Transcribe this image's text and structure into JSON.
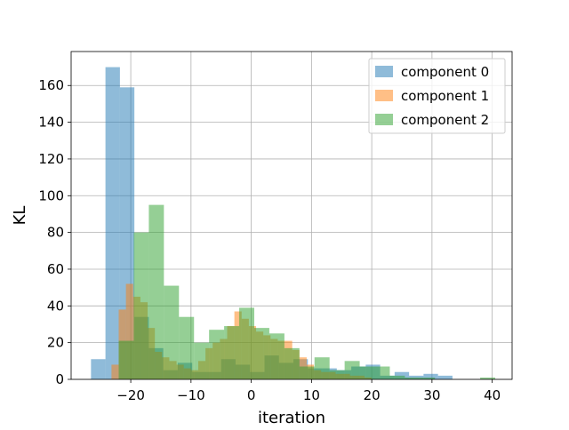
{
  "chart_data": {
    "type": "bar",
    "subtype": "overlapping-histogram",
    "title": "",
    "xlabel": "iteration",
    "ylabel": "KL",
    "xlim": [
      -29.9,
      43.3
    ],
    "ylim": [
      0,
      178.5
    ],
    "xticks": [
      -20,
      -10,
      0,
      10,
      20,
      30,
      40
    ],
    "yticks": [
      0,
      20,
      40,
      60,
      80,
      100,
      120,
      140,
      160
    ],
    "grid": true,
    "legend_placement": "top-right",
    "bar_opacity": 0.5,
    "series": [
      {
        "name": "component 0",
        "color": "#1f77b4",
        "bins": [
          {
            "x0": -26.6,
            "x1": -24.2,
            "count": 11
          },
          {
            "x0": -24.2,
            "x1": -21.8,
            "count": 170
          },
          {
            "x0": -21.8,
            "x1": -19.4,
            "count": 159
          },
          {
            "x0": -19.4,
            "x1": -17.0,
            "count": 34
          },
          {
            "x0": -17.0,
            "x1": -14.6,
            "count": 17
          },
          {
            "x0": -14.6,
            "x1": -12.2,
            "count": 5
          },
          {
            "x0": -12.2,
            "x1": -9.8,
            "count": 9
          },
          {
            "x0": -9.8,
            "x1": -7.4,
            "count": 4
          },
          {
            "x0": -7.4,
            "x1": -5.0,
            "count": 4
          },
          {
            "x0": -5.0,
            "x1": -2.6,
            "count": 11
          },
          {
            "x0": -2.6,
            "x1": -0.2,
            "count": 8
          },
          {
            "x0": -0.2,
            "x1": 2.2,
            "count": 4
          },
          {
            "x0": 2.2,
            "x1": 4.6,
            "count": 13
          },
          {
            "x0": 4.6,
            "x1": 7.0,
            "count": 9
          },
          {
            "x0": 7.0,
            "x1": 9.4,
            "count": 11
          },
          {
            "x0": 9.4,
            "x1": 11.8,
            "count": 6
          },
          {
            "x0": 11.8,
            "x1": 14.2,
            "count": 6
          },
          {
            "x0": 14.2,
            "x1": 16.6,
            "count": 5
          },
          {
            "x0": 16.6,
            "x1": 19.0,
            "count": 7
          },
          {
            "x0": 19.0,
            "x1": 21.4,
            "count": 8
          },
          {
            "x0": 21.4,
            "x1": 23.8,
            "count": 2
          },
          {
            "x0": 23.8,
            "x1": 26.2,
            "count": 4
          },
          {
            "x0": 26.2,
            "x1": 28.6,
            "count": 2
          },
          {
            "x0": 28.6,
            "x1": 31.0,
            "count": 3
          },
          {
            "x0": 31.0,
            "x1": 33.4,
            "count": 2
          }
        ]
      },
      {
        "name": "component 1",
        "color": "#ff7f0e",
        "bins": [
          {
            "x0": -23.2,
            "x1": -22.0,
            "count": 8
          },
          {
            "x0": -22.0,
            "x1": -20.8,
            "count": 38
          },
          {
            "x0": -20.8,
            "x1": -19.6,
            "count": 52
          },
          {
            "x0": -19.6,
            "x1": -18.4,
            "count": 45
          },
          {
            "x0": -18.4,
            "x1": -17.2,
            "count": 42
          },
          {
            "x0": -17.2,
            "x1": -16.0,
            "count": 28
          },
          {
            "x0": -16.0,
            "x1": -14.8,
            "count": 15
          },
          {
            "x0": -14.8,
            "x1": -13.6,
            "count": 12
          },
          {
            "x0": -13.6,
            "x1": -12.4,
            "count": 10
          },
          {
            "x0": -12.4,
            "x1": -11.2,
            "count": 8
          },
          {
            "x0": -11.2,
            "x1": -10.0,
            "count": 6
          },
          {
            "x0": -10.0,
            "x1": -8.8,
            "count": 5
          },
          {
            "x0": -8.8,
            "x1": -7.6,
            "count": 10
          },
          {
            "x0": -7.6,
            "x1": -6.4,
            "count": 17
          },
          {
            "x0": -6.4,
            "x1": -5.2,
            "count": 20
          },
          {
            "x0": -5.2,
            "x1": -4.0,
            "count": 22
          },
          {
            "x0": -4.0,
            "x1": -2.8,
            "count": 29
          },
          {
            "x0": -2.8,
            "x1": -1.6,
            "count": 37
          },
          {
            "x0": -1.6,
            "x1": -0.4,
            "count": 33
          },
          {
            "x0": -0.4,
            "x1": 0.8,
            "count": 29
          },
          {
            "x0": 0.8,
            "x1": 2.0,
            "count": 26
          },
          {
            "x0": 2.0,
            "x1": 3.2,
            "count": 24
          },
          {
            "x0": 3.2,
            "x1": 4.4,
            "count": 22
          },
          {
            "x0": 4.4,
            "x1": 5.6,
            "count": 21
          },
          {
            "x0": 5.6,
            "x1": 6.8,
            "count": 21
          },
          {
            "x0": 6.8,
            "x1": 8.0,
            "count": 16
          },
          {
            "x0": 8.0,
            "x1": 9.2,
            "count": 12
          },
          {
            "x0": 9.2,
            "x1": 10.4,
            "count": 8
          },
          {
            "x0": 10.4,
            "x1": 11.6,
            "count": 5
          },
          {
            "x0": 11.6,
            "x1": 12.8,
            "count": 4
          },
          {
            "x0": 12.8,
            "x1": 14.0,
            "count": 4
          },
          {
            "x0": 14.0,
            "x1": 15.2,
            "count": 3
          },
          {
            "x0": 15.2,
            "x1": 16.4,
            "count": 3
          },
          {
            "x0": 16.4,
            "x1": 17.6,
            "count": 2
          },
          {
            "x0": 17.6,
            "x1": 18.8,
            "count": 2
          },
          {
            "x0": 18.8,
            "x1": 20.0,
            "count": 1
          }
        ]
      },
      {
        "name": "component 2",
        "color": "#2ca02c",
        "bins": [
          {
            "x0": -22.0,
            "x1": -19.5,
            "count": 21
          },
          {
            "x0": -19.5,
            "x1": -17.0,
            "count": 80
          },
          {
            "x0": -17.0,
            "x1": -14.5,
            "count": 95
          },
          {
            "x0": -14.5,
            "x1": -12.0,
            "count": 51
          },
          {
            "x0": -12.0,
            "x1": -9.5,
            "count": 34
          },
          {
            "x0": -9.5,
            "x1": -7.0,
            "count": 20
          },
          {
            "x0": -7.0,
            "x1": -4.5,
            "count": 27
          },
          {
            "x0": -4.5,
            "x1": -2.0,
            "count": 29
          },
          {
            "x0": -2.0,
            "x1": 0.5,
            "count": 39
          },
          {
            "x0": 0.5,
            "x1": 3.0,
            "count": 28
          },
          {
            "x0": 3.0,
            "x1": 5.5,
            "count": 25
          },
          {
            "x0": 5.5,
            "x1": 8.0,
            "count": 17
          },
          {
            "x0": 8.0,
            "x1": 10.5,
            "count": 7
          },
          {
            "x0": 10.5,
            "x1": 13.0,
            "count": 12
          },
          {
            "x0": 13.0,
            "x1": 15.5,
            "count": 5
          },
          {
            "x0": 15.5,
            "x1": 18.0,
            "count": 10
          },
          {
            "x0": 18.0,
            "x1": 20.5,
            "count": 7
          },
          {
            "x0": 20.5,
            "x1": 23.0,
            "count": 7
          },
          {
            "x0": 23.0,
            "x1": 25.5,
            "count": 2
          },
          {
            "x0": 25.5,
            "x1": 28.0,
            "count": 1
          },
          {
            "x0": 28.0,
            "x1": 30.5,
            "count": 1
          },
          {
            "x0": 30.5,
            "x1": 33.0,
            "count": 0
          },
          {
            "x0": 33.0,
            "x1": 35.5,
            "count": 0
          },
          {
            "x0": 35.5,
            "x1": 38.0,
            "count": 0
          },
          {
            "x0": 38.0,
            "x1": 40.5,
            "count": 1
          }
        ]
      }
    ]
  }
}
